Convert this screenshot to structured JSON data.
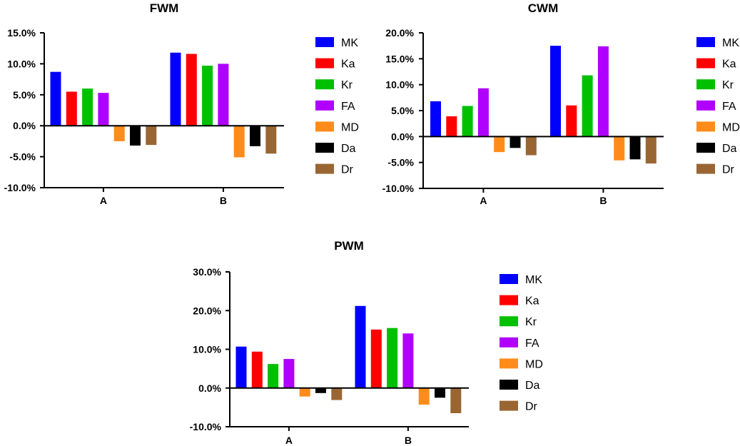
{
  "series_colors": {
    "MK": "#0000ff",
    "Ka": "#ff0000",
    "Kr": "#00c000",
    "FA": "#b000ff",
    "MD": "#ff8c1a",
    "Da": "#000000",
    "Dr": "#996633"
  },
  "chart_data": [
    {
      "type": "bar",
      "title": "FWM",
      "categories": [
        "A",
        "B"
      ],
      "ylim": [
        -10,
        15
      ],
      "yticks": [
        -10,
        -5,
        0,
        5,
        10,
        15
      ],
      "ytick_labels": [
        "-10.0%",
        "-5.0%",
        "0.0%",
        "5.0%",
        "10.0%",
        "15.0%"
      ],
      "series": [
        {
          "name": "MK",
          "values": [
            8.7,
            11.8
          ]
        },
        {
          "name": "Ka",
          "values": [
            5.5,
            11.6
          ]
        },
        {
          "name": "Kr",
          "values": [
            6.0,
            9.7
          ]
        },
        {
          "name": "FA",
          "values": [
            5.3,
            10.0
          ]
        },
        {
          "name": "MD",
          "values": [
            -2.5,
            -5.1
          ]
        },
        {
          "name": "Da",
          "values": [
            -3.2,
            -3.3
          ]
        },
        {
          "name": "Dr",
          "values": [
            -3.1,
            -4.5
          ]
        }
      ]
    },
    {
      "type": "bar",
      "title": "CWM",
      "categories": [
        "A",
        "B"
      ],
      "ylim": [
        -10,
        20
      ],
      "yticks": [
        -10,
        -5,
        0,
        5,
        10,
        15,
        20
      ],
      "ytick_labels": [
        "-10.0%",
        "-5.0%",
        "0.0%",
        "5.0%",
        "10.0%",
        "15.0%",
        "20.0%"
      ],
      "series": [
        {
          "name": "MK",
          "values": [
            6.8,
            17.5
          ]
        },
        {
          "name": "Ka",
          "values": [
            3.9,
            6.0
          ]
        },
        {
          "name": "Kr",
          "values": [
            5.9,
            11.8
          ]
        },
        {
          "name": "FA",
          "values": [
            9.3,
            17.4
          ]
        },
        {
          "name": "MD",
          "values": [
            -3.0,
            -4.6
          ]
        },
        {
          "name": "Da",
          "values": [
            -2.2,
            -4.4
          ]
        },
        {
          "name": "Dr",
          "values": [
            -3.6,
            -5.2
          ]
        }
      ]
    },
    {
      "type": "bar",
      "title": "PWM",
      "categories": [
        "A",
        "B"
      ],
      "ylim": [
        -10,
        30
      ],
      "yticks": [
        -10,
        0,
        10,
        20,
        30
      ],
      "ytick_labels": [
        "-10.0%",
        "0.0%",
        "10.0%",
        "20.0%",
        "30.0%"
      ],
      "series": [
        {
          "name": "MK",
          "values": [
            10.7,
            21.2
          ]
        },
        {
          "name": "Ka",
          "values": [
            9.4,
            15.1
          ]
        },
        {
          "name": "Kr",
          "values": [
            6.2,
            15.5
          ]
        },
        {
          "name": "FA",
          "values": [
            7.5,
            14.1
          ]
        },
        {
          "name": "MD",
          "values": [
            -2.2,
            -4.3
          ]
        },
        {
          "name": "Da",
          "values": [
            -1.3,
            -2.5
          ]
        },
        {
          "name": "Dr",
          "values": [
            -3.1,
            -6.5
          ]
        }
      ]
    }
  ]
}
